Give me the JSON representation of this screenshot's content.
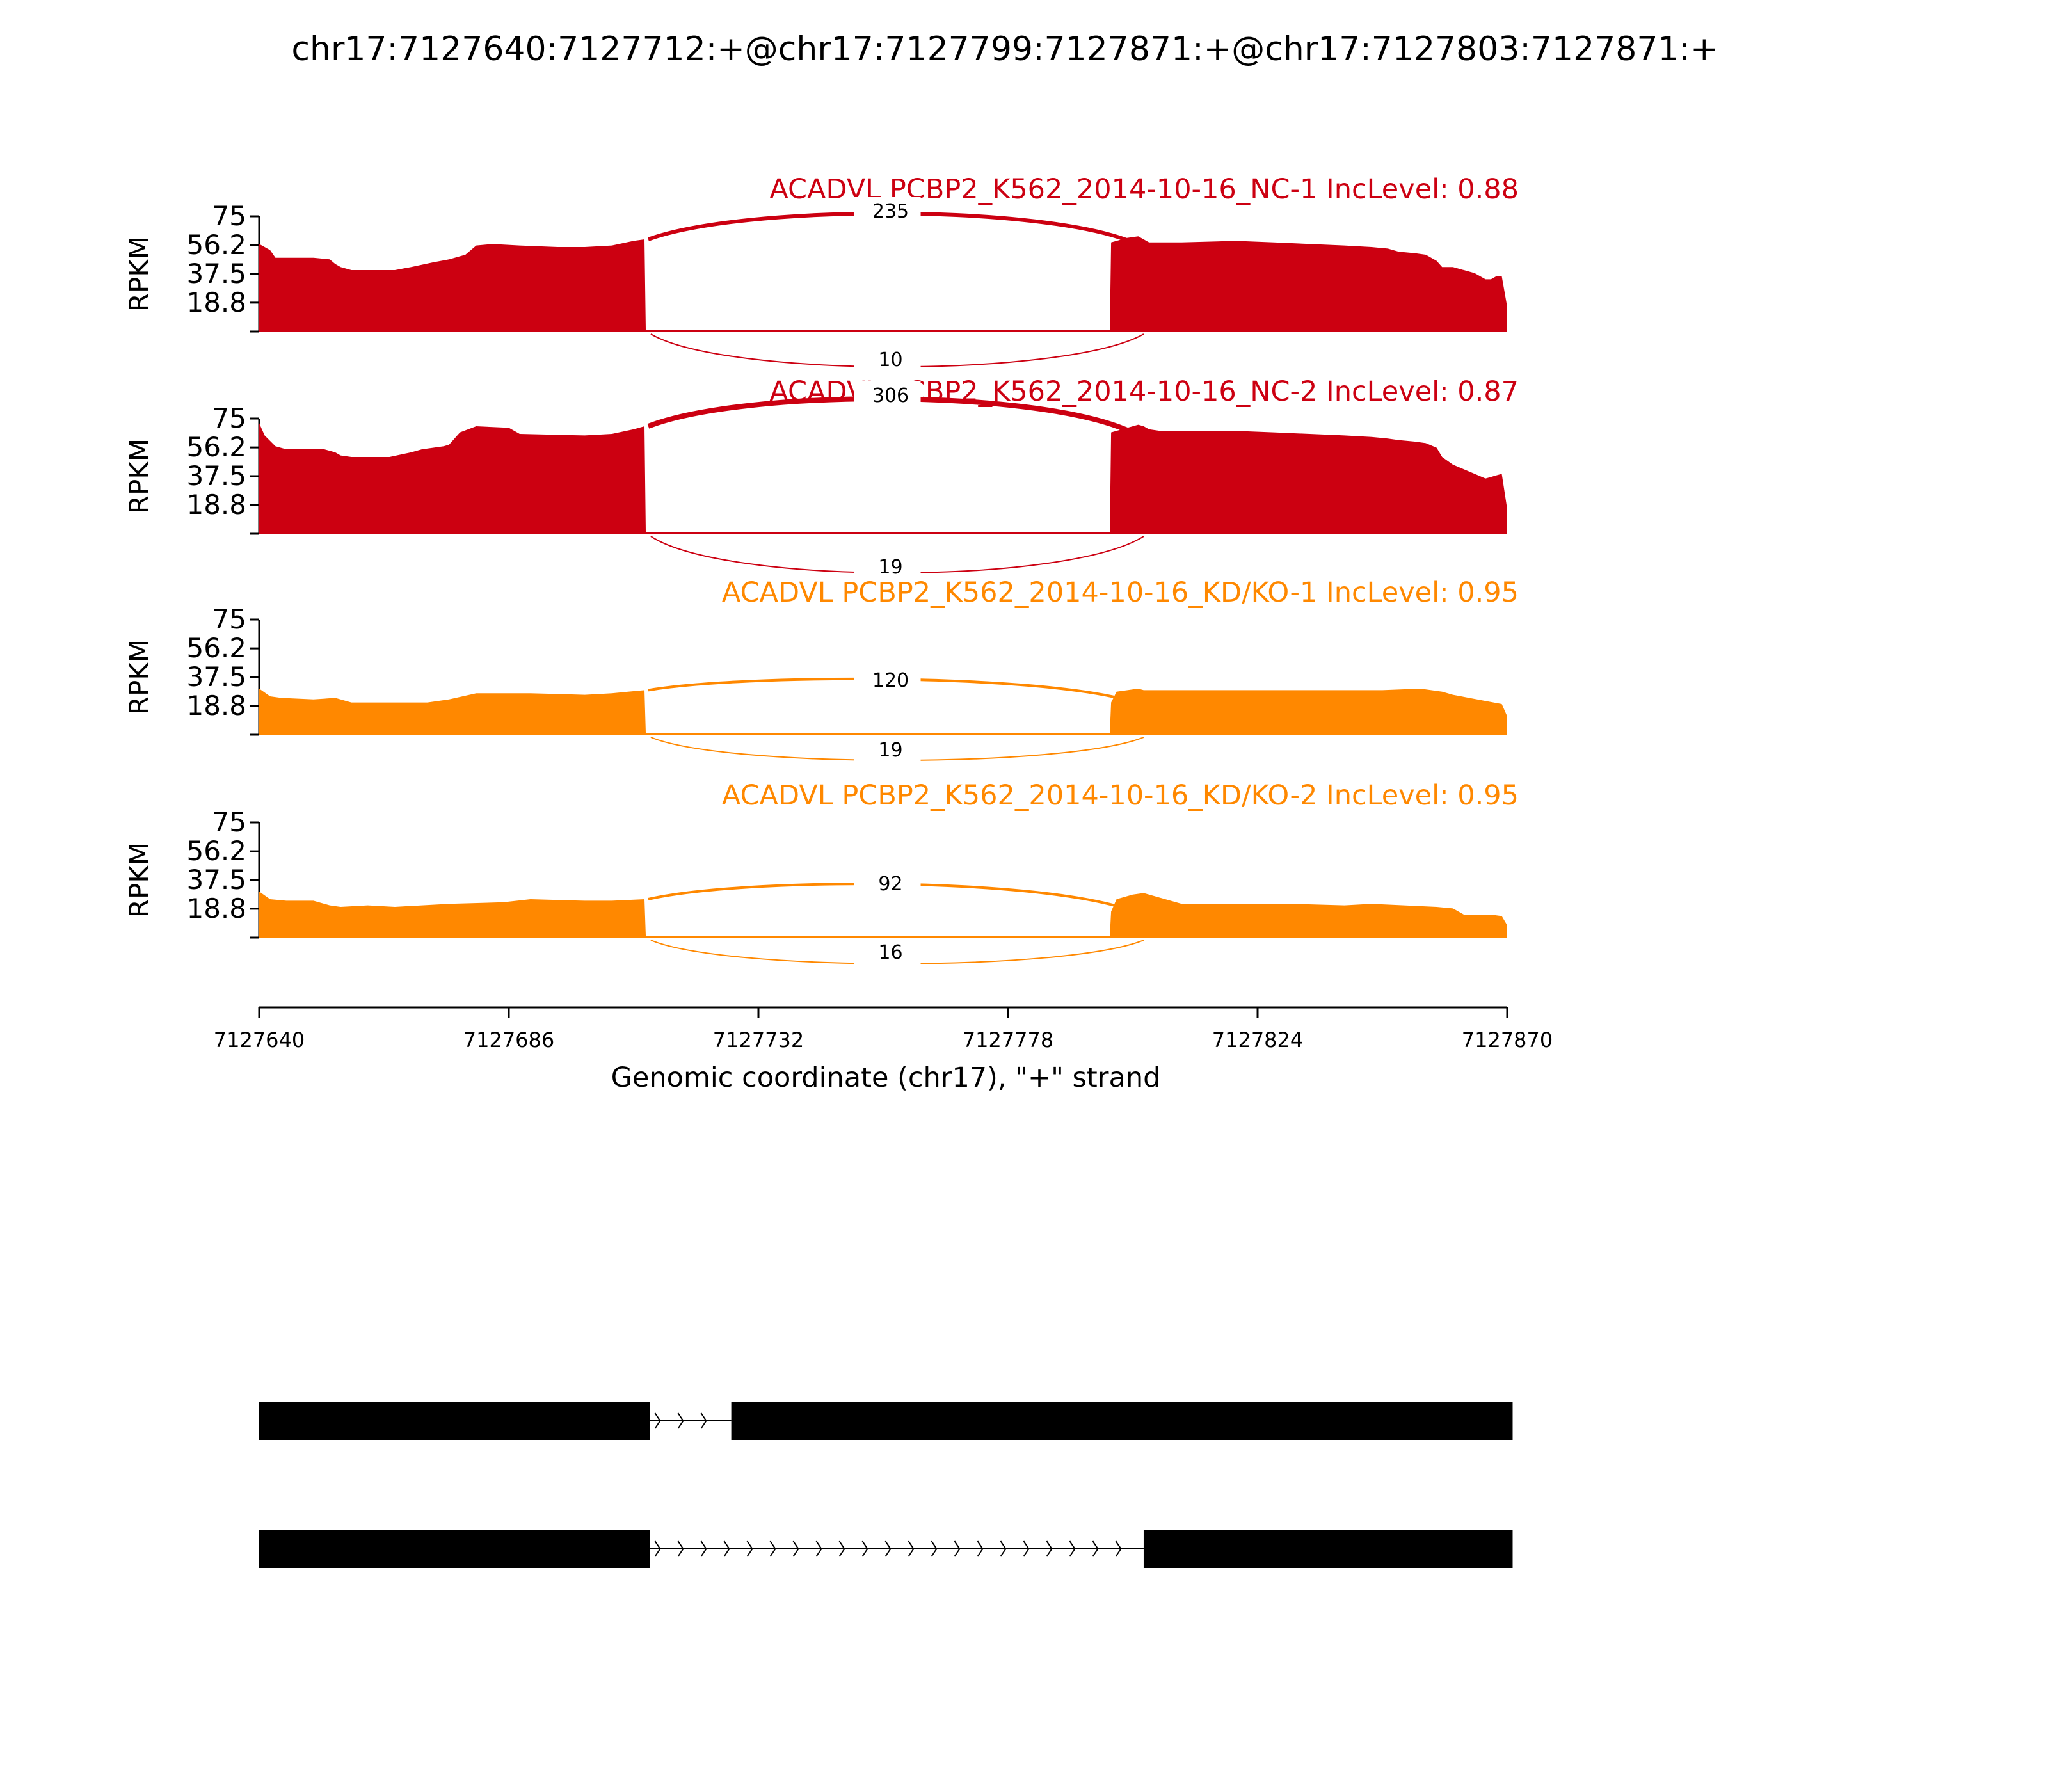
{
  "chart_data": {
    "type": "area",
    "title": "chr17:7127640:7127712:+@chr17:7127799:7127871:+@chr17:7127803:7127871:+",
    "xlabel": "Genomic coordinate (chr17), \"+\" strand",
    "ylabel": "RPKM",
    "xlim": [
      7127640,
      7127870
    ],
    "x_ticks": [
      "7127640",
      "7127686",
      "7127732",
      "7127778",
      "7127824",
      "7127870"
    ],
    "ylim": [
      0,
      75
    ],
    "y_ticks": [
      "75",
      "56.2",
      "37.5",
      "18.8"
    ],
    "grid": false,
    "exon1": [
      7127640,
      7127711
    ],
    "exon2": [
      7127726,
      7127804
    ],
    "series": [
      {
        "name": "ACADVL PCBP2_K562_2014-10-16_NC-1 IncLevel: 0.88",
        "color": "#CC0011",
        "exon1_x": [
          7127640,
          7127642,
          7127643,
          7127650,
          7127653,
          7127654,
          7127655,
          7127657,
          7127660,
          7127665,
          7127668,
          7127672,
          7127675,
          7127678,
          7127680,
          7127683,
          7127688,
          7127695,
          7127700,
          7127705,
          7127709,
          7127711
        ],
        "exon1_y": [
          57,
          53,
          48,
          48,
          47,
          44,
          42,
          40,
          40,
          40,
          42,
          45,
          47,
          50,
          56,
          57,
          56,
          55,
          55,
          56,
          59,
          60
        ],
        "exon2_x": [
          7127797,
          7127800,
          7127802,
          7127803,
          7127804,
          7127806,
          7127810,
          7127820,
          7127827,
          7127840,
          7127845,
          7127848,
          7127850,
          7127853,
          7127855,
          7127857,
          7127858,
          7127860,
          7127864,
          7127866,
          7127867,
          7127868,
          7127869,
          7127870
        ],
        "exon2_y": [
          58,
          61,
          62,
          60,
          58,
          58,
          58,
          59,
          58,
          56,
          55,
          54,
          52,
          51,
          50,
          46,
          42,
          42,
          38,
          34,
          34,
          36,
          36,
          16
        ],
        "junctions": [
          {
            "label": "235",
            "position": "above"
          },
          {
            "label": "10",
            "position": "below"
          }
        ]
      },
      {
        "name": "ACADVL PCBP2_K562_2014-10-16_NC-2 IncLevel: 0.87",
        "color": "#CC0011",
        "exon1_x": [
          7127640,
          7127641,
          7127643,
          7127645,
          7127652,
          7127654,
          7127655,
          7127657,
          7127662,
          7127664,
          7127668,
          7127670,
          7127674,
          7127675,
          7127677,
          7127680,
          7127686,
          7127688,
          7127700,
          7127705,
          7127709,
          7127711
        ],
        "exon1_y": [
          72,
          64,
          57,
          55,
          55,
          53,
          51,
          50,
          50,
          50,
          53,
          55,
          57,
          58,
          66,
          70,
          69,
          65,
          64,
          65,
          68,
          70
        ],
        "exon2_x": [
          7127797,
          7127800,
          7127802,
          7127803,
          7127804,
          7127806,
          7127810,
          7127820,
          7127827,
          7127840,
          7127845,
          7127848,
          7127850,
          7127853,
          7127855,
          7127857,
          7127858,
          7127860,
          7127864,
          7127866,
          7127867,
          7127868,
          7127869,
          7127870
        ],
        "exon2_y": [
          66,
          69,
          71,
          70,
          68,
          67,
          67,
          67,
          66,
          64,
          63,
          62,
          61,
          60,
          59,
          56,
          50,
          45,
          39,
          36,
          37,
          38,
          39,
          16
        ],
        "junctions": [
          {
            "label": "306",
            "position": "above"
          },
          {
            "label": "19",
            "position": "below"
          }
        ]
      },
      {
        "name": "ACADVL PCBP2_K562_2014-10-16_KD/KO-1 IncLevel: 0.95",
        "color": "#FF8800",
        "exon1_x": [
          7127640,
          7127642,
          7127644,
          7127650,
          7127654,
          7127657,
          7127664,
          7127671,
          7127675,
          7127680,
          7127690,
          7127700,
          7127705,
          7127708,
          7127711
        ],
        "exon1_y": [
          30,
          25,
          24,
          23,
          24,
          21,
          21,
          21,
          23,
          27,
          27,
          26,
          27,
          28,
          29
        ],
        "exon2_x": [
          7127797,
          7127798,
          7127802,
          7127803,
          7127812,
          7127820,
          7127830,
          7127840,
          7127847,
          7127854,
          7127856,
          7127858,
          7127860,
          7127866,
          7127869,
          7127870
        ],
        "exon2_y": [
          21,
          28,
          30,
          29,
          29,
          29,
          29,
          29,
          29,
          30,
          29,
          28,
          26,
          22,
          20,
          12
        ],
        "junctions": [
          {
            "label": "120",
            "position": "above"
          },
          {
            "label": "19",
            "position": "below"
          }
        ]
      },
      {
        "name": "ACADVL PCBP2_K562_2014-10-16_KD/KO-2 IncLevel: 0.95",
        "color": "#FF8800",
        "exon1_x": [
          7127640,
          7127642,
          7127645,
          7127650,
          7127653,
          7127655,
          7127660,
          7127665,
          7127670,
          7127675,
          7127685,
          7127690,
          7127700,
          7127705,
          7127711
        ],
        "exon1_y": [
          30,
          25,
          24,
          24,
          21,
          20,
          21,
          20,
          21,
          22,
          23,
          25,
          24,
          24,
          25
        ],
        "exon2_x": [
          7127797,
          7127798,
          7127801,
          7127803,
          7127806,
          7127810,
          7127820,
          7127830,
          7127840,
          7127845,
          7127857,
          7127860,
          7127862,
          7127867,
          7127869,
          7127870
        ],
        "exon2_y": [
          17,
          25,
          28,
          29,
          26,
          22,
          22,
          22,
          21,
          22,
          20,
          19,
          15,
          15,
          14,
          8
        ],
        "junctions": [
          {
            "label": "92",
            "position": "above"
          },
          {
            "label": "16",
            "position": "below"
          }
        ]
      }
    ],
    "isoforms": [
      {
        "exons": [
          [
            7127640,
            7127712
          ],
          [
            7127727,
            7127871
          ]
        ],
        "junction": [
          7127712,
          7127727
        ]
      },
      {
        "exons": [
          [
            7127640,
            7127712
          ],
          [
            7127803,
            7127871
          ]
        ],
        "junction": [
          7127712,
          7127803
        ]
      }
    ]
  }
}
